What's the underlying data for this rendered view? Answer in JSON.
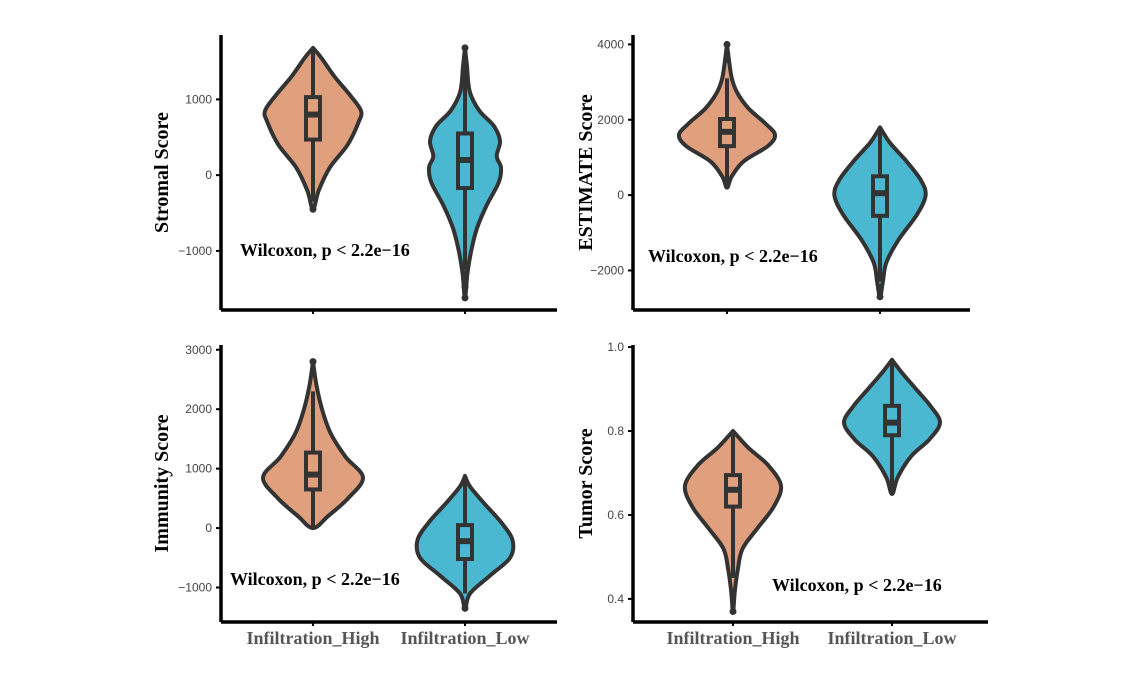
{
  "colors": {
    "high": "#E0A07E",
    "low": "#4BB8D1",
    "outline": "#333333",
    "axis": "#000000"
  },
  "chart_data": [
    {
      "type": "violin",
      "ylabel": "Stromal Score",
      "annotation": "Wilcoxon, p < 2.2e−16",
      "xtick_labels": [
        "",
        ""
      ],
      "ylim": [
        -1780,
        1850
      ],
      "yticks": [
        -1000,
        0,
        1000
      ],
      "ytick_labels": [
        "−1000",
        "0",
        "1000"
      ],
      "groups": [
        {
          "name": "Infiltration_High",
          "color": "high",
          "min": -450,
          "q1": 470,
          "median": 800,
          "q3": 1030,
          "max": 1680,
          "whisker_low": -350,
          "whisker_high": 1680,
          "outliers": [
            -450
          ],
          "density": [
            [
              -450,
              0.01
            ],
            [
              -200,
              0.12
            ],
            [
              100,
              0.35
            ],
            [
              400,
              0.72
            ],
            [
              700,
              0.95
            ],
            [
              850,
              1.0
            ],
            [
              1050,
              0.78
            ],
            [
              1300,
              0.45
            ],
            [
              1550,
              0.17
            ],
            [
              1680,
              0.05
            ]
          ]
        },
        {
          "name": "Infiltration_Low",
          "color": "low",
          "min": -1620,
          "q1": -170,
          "median": 200,
          "q3": 550,
          "max": 1680,
          "whisker_low": -1250,
          "whisker_high": 1450,
          "outliers": [
            -1300,
            -1480,
            -1620,
            1680
          ],
          "density": [
            [
              -1620,
              0.01
            ],
            [
              -1300,
              0.05
            ],
            [
              -1000,
              0.13
            ],
            [
              -700,
              0.25
            ],
            [
              -400,
              0.45
            ],
            [
              -100,
              0.7
            ],
            [
              100,
              0.75
            ],
            [
              250,
              0.66
            ],
            [
              450,
              0.73
            ],
            [
              650,
              0.6
            ],
            [
              850,
              0.3
            ],
            [
              1100,
              0.1
            ],
            [
              1450,
              0.04
            ],
            [
              1680,
              0.01
            ]
          ]
        }
      ]
    },
    {
      "type": "violin",
      "ylabel": "ESTIMATE Score",
      "annotation": "Wilcoxon, p < 2.2e−16",
      "xtick_labels": [
        "",
        ""
      ],
      "ylim": [
        -3050,
        4250
      ],
      "yticks": [
        -2000,
        0,
        2000,
        4000
      ],
      "ytick_labels": [
        "−2000",
        "0",
        "2000",
        "4000"
      ],
      "groups": [
        {
          "name": "Infiltration_High",
          "color": "high",
          "min": 200,
          "q1": 1300,
          "median": 1680,
          "q3": 2020,
          "max": 4000,
          "whisker_low": 200,
          "whisker_high": 3100,
          "outliers": [
            3600,
            4000
          ],
          "density": [
            [
              200,
              0.01
            ],
            [
              500,
              0.1
            ],
            [
              900,
              0.35
            ],
            [
              1300,
              0.85
            ],
            [
              1600,
              1.0
            ],
            [
              1900,
              0.8
            ],
            [
              2300,
              0.45
            ],
            [
              2700,
              0.22
            ],
            [
              3100,
              0.1
            ],
            [
              3600,
              0.04
            ],
            [
              4000,
              0.01
            ]
          ]
        },
        {
          "name": "Infiltration_Low",
          "color": "low",
          "min": -2700,
          "q1": -550,
          "median": 50,
          "q3": 500,
          "max": 1800,
          "whisker_low": -2300,
          "whisker_high": 1700,
          "outliers": [
            -2450,
            -2700
          ],
          "density": [
            [
              -2700,
              0.01
            ],
            [
              -2300,
              0.06
            ],
            [
              -1800,
              0.13
            ],
            [
              -1200,
              0.38
            ],
            [
              -500,
              0.78
            ],
            [
              0,
              0.95
            ],
            [
              400,
              0.85
            ],
            [
              900,
              0.55
            ],
            [
              1400,
              0.2
            ],
            [
              1800,
              0.02
            ]
          ]
        }
      ]
    },
    {
      "type": "violin",
      "ylabel": "Immunity Score",
      "annotation": "Wilcoxon, p < 2.2e−16",
      "xtick_labels": [
        "Infiltration_High",
        "Infiltration_Low"
      ],
      "ylim": [
        -1580,
        3080
      ],
      "yticks": [
        -1000,
        0,
        1000,
        2000,
        3000
      ],
      "ytick_labels": [
        "−1000",
        "0",
        "1000",
        "2000",
        "3000"
      ],
      "groups": [
        {
          "name": "Infiltration_High",
          "color": "high",
          "min": 0,
          "q1": 650,
          "median": 900,
          "q3": 1270,
          "max": 2800,
          "whisker_low": 0,
          "whisker_high": 2300,
          "outliers": [
            2800
          ],
          "density": [
            [
              0,
              0.01
            ],
            [
              200,
              0.3
            ],
            [
              500,
              0.7
            ],
            [
              850,
              1.0
            ],
            [
              1200,
              0.65
            ],
            [
              1600,
              0.35
            ],
            [
              2000,
              0.18
            ],
            [
              2400,
              0.07
            ],
            [
              2800,
              0.01
            ]
          ]
        },
        {
          "name": "Infiltration_Low",
          "color": "low",
          "min": -1350,
          "q1": -520,
          "median": -220,
          "q3": 50,
          "max": 880,
          "whisker_low": -1100,
          "whisker_high": 880,
          "outliers": [
            -1350
          ],
          "density": [
            [
              -1350,
              0.01
            ],
            [
              -1100,
              0.1
            ],
            [
              -800,
              0.5
            ],
            [
              -500,
              0.9
            ],
            [
              -200,
              0.95
            ],
            [
              100,
              0.72
            ],
            [
              400,
              0.4
            ],
            [
              700,
              0.1
            ],
            [
              880,
              0.01
            ]
          ]
        }
      ]
    },
    {
      "type": "violin",
      "ylabel": "Tumor Score",
      "annotation": "Wilcoxon, p < 2.2e−16",
      "xtick_labels": [
        "Infiltration_High",
        "Infiltration_Low"
      ],
      "ylim": [
        0.345,
        1.005
      ],
      "yticks": [
        0.4,
        0.6,
        0.8,
        1.0
      ],
      "ytick_labels": [
        "0.4",
        "0.6",
        "0.8",
        "1.0"
      ],
      "groups": [
        {
          "name": "Infiltration_High",
          "color": "high",
          "min": 0.37,
          "q1": 0.62,
          "median": 0.66,
          "q3": 0.695,
          "max": 0.805,
          "whisker_low": 0.45,
          "whisker_high": 0.8,
          "outliers": [
            0.37,
            0.41
          ],
          "density": [
            [
              0.37,
              0.01
            ],
            [
              0.42,
              0.04
            ],
            [
              0.47,
              0.1
            ],
            [
              0.52,
              0.2
            ],
            [
              0.57,
              0.52
            ],
            [
              0.62,
              0.85
            ],
            [
              0.67,
              1.0
            ],
            [
              0.72,
              0.72
            ],
            [
              0.76,
              0.32
            ],
            [
              0.8,
              0.04
            ]
          ]
        },
        {
          "name": "Infiltration_Low",
          "color": "low",
          "min": 0.65,
          "q1": 0.79,
          "median": 0.82,
          "q3": 0.86,
          "max": 0.97,
          "whisker_low": 0.65,
          "whisker_high": 0.97,
          "outliers": [],
          "density": [
            [
              0.65,
              0.01
            ],
            [
              0.69,
              0.12
            ],
            [
              0.74,
              0.4
            ],
            [
              0.78,
              0.78
            ],
            [
              0.82,
              1.0
            ],
            [
              0.86,
              0.8
            ],
            [
              0.9,
              0.5
            ],
            [
              0.94,
              0.2
            ],
            [
              0.97,
              0.02
            ]
          ]
        }
      ]
    }
  ]
}
